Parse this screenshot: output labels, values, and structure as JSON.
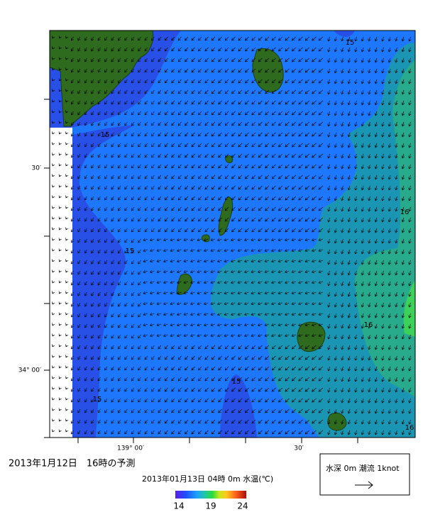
{
  "map": {
    "title": "2013年1月12日　16時の予測",
    "subtitle": "2013年01月13日 04時 0m 水温(℃)",
    "current_legend": "水深 0m 潮流 1knot",
    "lat_labels": [
      "30′",
      "34° 00′"
    ],
    "lon_labels": [
      "139° 00′",
      "30′"
    ],
    "contour_labels": [
      "15",
      "15",
      "15",
      "15",
      "15",
      "16",
      "16",
      "16"
    ],
    "colorbar": {
      "ticks": [
        14,
        19,
        24
      ]
    }
  }
}
